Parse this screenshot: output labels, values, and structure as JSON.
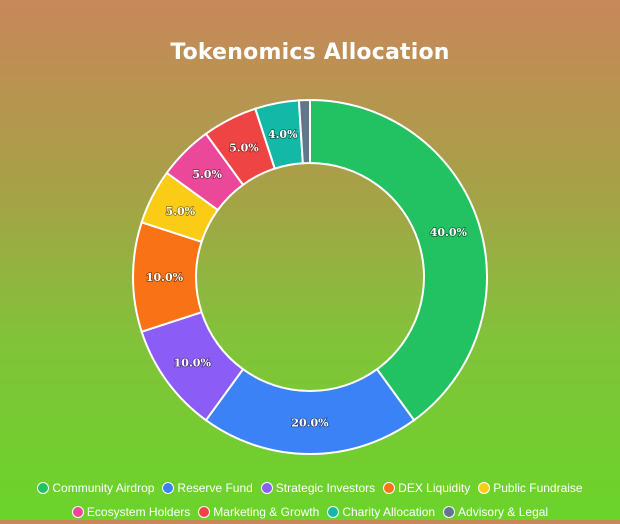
{
  "chart_data": {
    "type": "doughnut",
    "title": "Tokenomics Allocation",
    "categories": [
      "Community Airdrop",
      "Reserve Fund",
      "Strategic Investors",
      "DEX Liquidity",
      "Public Fundraise",
      "Ecosystem Holders",
      "Marketing & Growth",
      "Charity Allocation",
      "Advisory & Legal"
    ],
    "values": [
      40,
      20,
      10,
      10,
      5,
      5,
      5,
      4,
      1
    ],
    "labels": [
      "40.0%",
      "20.0%",
      "10.0%",
      "10.0%",
      "5.0%",
      "5.0%",
      "5.0%",
      "4.0%",
      ""
    ],
    "colors": [
      "#22c161",
      "#3b82f6",
      "#8b5cf6",
      "#f97316",
      "#facc15",
      "#ec4899",
      "#ef4444",
      "#14b8a6",
      "#64748b"
    ],
    "legend_position": "bottom"
  },
  "legend": {
    "rows": [
      [
        0,
        1,
        2,
        3,
        4
      ],
      [
        5,
        6,
        7,
        8
      ]
    ]
  }
}
